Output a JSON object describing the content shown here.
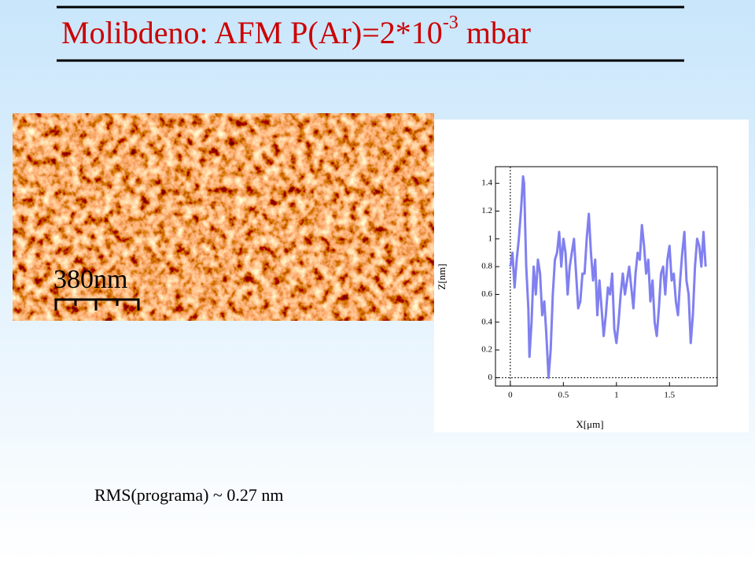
{
  "slide": {
    "title": "Molibdeno:  AFM P(Ar)=2*10",
    "title_sup": "-3",
    "title_unit": "mbar",
    "scale_bar": "380nm",
    "note": "RMS(programa) ~ 0.27 nm"
  },
  "chart_data": {
    "type": "line",
    "xlabel": "X[μm]",
    "ylabel": "Z[nm]",
    "color": "#8080f0",
    "x": [
      0,
      0.02,
      0.04,
      0.06,
      0.08,
      0.1,
      0.12,
      0.13,
      0.15,
      0.17,
      0.18,
      0.2,
      0.22,
      0.24,
      0.26,
      0.28,
      0.3,
      0.32,
      0.34,
      0.36,
      0.38,
      0.4,
      0.42,
      0.44,
      0.46,
      0.48,
      0.5,
      0.52,
      0.54,
      0.56,
      0.6,
      0.62,
      0.64,
      0.66,
      0.68,
      0.7,
      0.72,
      0.74,
      0.76,
      0.78,
      0.8,
      0.82,
      0.84,
      0.86,
      0.88,
      0.9,
      0.92,
      0.94,
      0.96,
      0.98,
      1.0,
      1.02,
      1.04,
      1.06,
      1.08,
      1.1,
      1.12,
      1.14,
      1.16,
      1.18,
      1.2,
      1.22,
      1.24,
      1.26,
      1.28,
      1.3,
      1.32,
      1.34,
      1.36,
      1.38,
      1.4,
      1.42,
      1.44,
      1.46,
      1.48,
      1.5,
      1.52,
      1.54,
      1.56,
      1.58,
      1.6,
      1.62,
      1.64,
      1.66,
      1.68,
      1.7,
      1.72,
      1.74,
      1.76,
      1.78,
      1.8,
      1.82,
      1.84
    ],
    "values": [
      0.8,
      0.9,
      0.65,
      0.85,
      1.0,
      1.2,
      1.45,
      1.4,
      0.8,
      0.5,
      0.15,
      0.4,
      0.8,
      0.6,
      0.85,
      0.75,
      0.45,
      0.55,
      0.3,
      0.0,
      0.2,
      0.6,
      0.85,
      0.9,
      1.05,
      0.8,
      1.0,
      0.9,
      0.6,
      0.8,
      1.0,
      0.75,
      0.5,
      0.55,
      0.75,
      0.75,
      1.0,
      1.18,
      0.9,
      0.7,
      0.85,
      0.45,
      0.7,
      0.5,
      0.3,
      0.45,
      0.65,
      0.6,
      0.75,
      0.35,
      0.25,
      0.4,
      0.6,
      0.75,
      0.6,
      0.7,
      0.8,
      0.65,
      0.5,
      0.75,
      0.9,
      0.85,
      1.1,
      0.95,
      0.75,
      0.85,
      0.55,
      0.7,
      0.4,
      0.3,
      0.5,
      0.75,
      0.8,
      0.6,
      0.85,
      0.95,
      0.7,
      0.75,
      0.55,
      0.45,
      0.7,
      0.9,
      1.05,
      0.7,
      0.6,
      0.25,
      0.45,
      0.8,
      1.0,
      0.95,
      0.8,
      1.05,
      0.8
    ],
    "xlim": [
      -0.14,
      1.95
    ],
    "ylim": [
      -0.06,
      1.52
    ],
    "xticks": [
      0,
      0.5,
      1,
      1.5
    ],
    "yticks": [
      0,
      0.2,
      0.4,
      0.6,
      0.8,
      1,
      1.2,
      1.4
    ]
  }
}
